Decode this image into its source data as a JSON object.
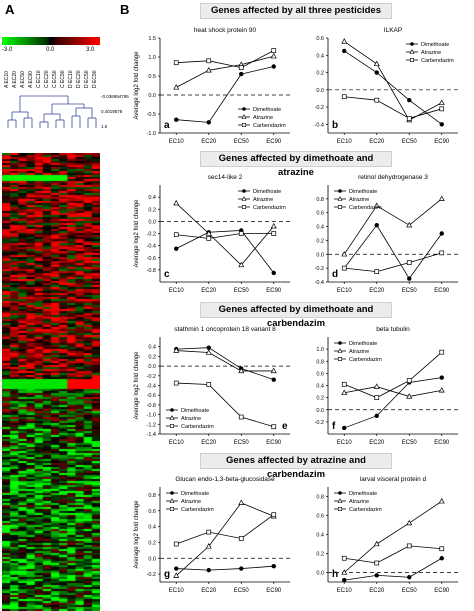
{
  "panel_a": {
    "letter": "A",
    "scale_min": "-3.0",
    "scale_mid": "0.0",
    "scale_max": "3.0",
    "samples": [
      "A EC10",
      "A EC20",
      "A EC50",
      "A EC90",
      "C EC10",
      "C EC20",
      "C EC50",
      "C EC90",
      "D EC10",
      "D EC20",
      "D EC50",
      "D EC90"
    ],
    "dendrogram_values": [
      "-0.036994785",
      "0.4019578",
      "1.0"
    ]
  },
  "panel_b": {
    "letter": "B",
    "sections": [
      "Genes affected by all three pesticides",
      "Genes affected by dimethoate and atrazine",
      "Genes affected by dimethoate and carbendazim",
      "Genes affected by atrazine and carbendazim"
    ]
  },
  "chart_data": [
    {
      "type": "line",
      "title": "heat shock protein 90",
      "panel": "a",
      "xlabel": "",
      "ylabel": "Average log2 fold change",
      "categories": [
        "EC10",
        "EC20",
        "EC50",
        "EC90"
      ],
      "ylim": [
        -1.0,
        1.5
      ],
      "yticks": [
        "-1.0",
        "-0.5",
        "0.0",
        "0.5",
        "1.0",
        "1.5"
      ],
      "legend": "bottom-right",
      "series": [
        {
          "name": "Dimethoate",
          "marker": "circle",
          "values": [
            -0.65,
            -0.72,
            0.55,
            0.75
          ]
        },
        {
          "name": "Atrazine",
          "marker": "triangle",
          "values": [
            0.2,
            0.65,
            0.8,
            1.02
          ]
        },
        {
          "name": "Carbendazim",
          "marker": "square",
          "values": [
            0.85,
            0.9,
            0.72,
            1.17
          ]
        }
      ]
    },
    {
      "type": "line",
      "title": "ILKAP",
      "panel": "b",
      "xlabel": "",
      "ylabel": "",
      "categories": [
        "EC10",
        "EC20",
        "EC50",
        "EC90"
      ],
      "ylim": [
        -0.5,
        0.6
      ],
      "yticks": [
        "-0.4",
        "-0.2",
        "0.0",
        "0.2",
        "0.4",
        "0.6"
      ],
      "legend": "top-right",
      "series": [
        {
          "name": "Dimethoate",
          "marker": "circle",
          "values": [
            0.45,
            0.2,
            -0.12,
            -0.4
          ]
        },
        {
          "name": "Atrazine",
          "marker": "triangle",
          "values": [
            0.56,
            0.3,
            -0.35,
            -0.15
          ]
        },
        {
          "name": "Carbendazim",
          "marker": "square",
          "values": [
            -0.08,
            -0.12,
            -0.33,
            -0.22
          ]
        }
      ]
    },
    {
      "type": "line",
      "title": "sec14-like 2",
      "panel": "c",
      "xlabel": "",
      "ylabel": "Average log2 fold change",
      "categories": [
        "EC10",
        "EC20",
        "EC50",
        "EC90"
      ],
      "ylim": [
        -1.0,
        0.6
      ],
      "yticks": [
        "-0.8",
        "-0.6",
        "-0.4",
        "-0.2",
        "0.0",
        "0.2",
        "0.4"
      ],
      "legend": "top-right",
      "series": [
        {
          "name": "Dimethoate",
          "marker": "circle",
          "values": [
            -0.45,
            -0.18,
            -0.15,
            -0.85
          ]
        },
        {
          "name": "Atrazine",
          "marker": "triangle",
          "values": [
            0.3,
            -0.2,
            -0.72,
            -0.08
          ]
        },
        {
          "name": "Carbendazim",
          "marker": "square",
          "values": [
            -0.22,
            -0.28,
            -0.2,
            -0.2
          ]
        }
      ]
    },
    {
      "type": "line",
      "title": "retinol dehydrogenase 3",
      "panel": "d",
      "xlabel": "",
      "ylabel": "",
      "categories": [
        "EC10",
        "EC20",
        "EC50",
        "EC90"
      ],
      "ylim": [
        -0.4,
        1.0
      ],
      "yticks": [
        "-0.4",
        "-0.2",
        "0.0",
        "0.2",
        "0.4",
        "0.6",
        "0.8"
      ],
      "legend": "top-left",
      "series": [
        {
          "name": "Dimethoate",
          "marker": "circle",
          "values": [
            -0.2,
            0.42,
            -0.35,
            0.3
          ]
        },
        {
          "name": "Atrazine",
          "marker": "triangle",
          "values": [
            0.0,
            0.7,
            0.42,
            0.8
          ]
        },
        {
          "name": "Carbendazim",
          "marker": "square",
          "values": [
            -0.2,
            -0.25,
            -0.12,
            0.02
          ]
        }
      ]
    },
    {
      "type": "line",
      "title": "stathmin 1 oncoprotein 18 variant 8",
      "panel": "e",
      "xlabel": "",
      "ylabel": "Average log2 fold change",
      "categories": [
        "EC10",
        "EC20",
        "EC50",
        "EC90"
      ],
      "ylim": [
        -1.4,
        0.6
      ],
      "yticks": [
        "-1.4",
        "-1.2",
        "-1.0",
        "-0.8",
        "-0.6",
        "-0.4",
        "-0.2",
        "0.0",
        "0.2",
        "0.4"
      ],
      "legend": "bottom-left",
      "series": [
        {
          "name": "Dimethoate",
          "marker": "circle",
          "values": [
            0.35,
            0.38,
            -0.05,
            -0.28
          ]
        },
        {
          "name": "Atrazine",
          "marker": "triangle",
          "values": [
            0.32,
            0.28,
            -0.1,
            -0.1
          ]
        },
        {
          "name": "Carbendazim",
          "marker": "square",
          "values": [
            -0.35,
            -0.38,
            -1.05,
            -1.25
          ]
        }
      ]
    },
    {
      "type": "line",
      "title": "beta tubulin",
      "panel": "f",
      "xlabel": "",
      "ylabel": "",
      "categories": [
        "EC10",
        "EC20",
        "EC50",
        "EC90"
      ],
      "ylim": [
        -0.4,
        1.2
      ],
      "yticks": [
        "-0.2",
        "0.0",
        "0.2",
        "0.4",
        "0.6",
        "0.8",
        "1.0"
      ],
      "legend": "top-left",
      "series": [
        {
          "name": "Dimethoate",
          "marker": "circle",
          "values": [
            -0.3,
            -0.1,
            0.45,
            0.53
          ]
        },
        {
          "name": "Atrazine",
          "marker": "triangle",
          "values": [
            0.28,
            0.38,
            0.22,
            0.32
          ]
        },
        {
          "name": "Carbendazim",
          "marker": "square",
          "values": [
            0.42,
            0.2,
            0.48,
            0.95
          ]
        }
      ]
    },
    {
      "type": "line",
      "title": "Glucan endo-1,3-beta-glucosidase",
      "panel": "g",
      "xlabel": "",
      "ylabel": "Average log2 fold change",
      "categories": [
        "EC10",
        "EC20",
        "EC50",
        "EC90"
      ],
      "ylim": [
        -0.3,
        0.9
      ],
      "yticks": [
        "-0.2",
        "0.0",
        "0.2",
        "0.4",
        "0.6",
        "0.8"
      ],
      "legend": "top-left",
      "series": [
        {
          "name": "Dimethoate",
          "marker": "circle",
          "values": [
            -0.13,
            -0.15,
            -0.13,
            -0.1
          ]
        },
        {
          "name": "Atrazine",
          "marker": "triangle",
          "values": [
            -0.22,
            0.15,
            0.7,
            0.53
          ]
        },
        {
          "name": "Carbendazim",
          "marker": "square",
          "values": [
            0.18,
            0.33,
            0.25,
            0.55
          ]
        }
      ]
    },
    {
      "type": "line",
      "title": "larval visceral protein d",
      "panel": "h",
      "xlabel": "",
      "ylabel": "",
      "categories": [
        "EC10",
        "EC20",
        "EC50",
        "EC90"
      ],
      "ylim": [
        -0.1,
        0.9
      ],
      "yticks": [
        "0.0",
        "0.2",
        "0.4",
        "0.6",
        "0.8"
      ],
      "legend": "top-left",
      "series": [
        {
          "name": "Dimethoate",
          "marker": "circle",
          "values": [
            -0.08,
            -0.03,
            -0.05,
            0.15
          ]
        },
        {
          "name": "Atrazine",
          "marker": "triangle",
          "values": [
            0.0,
            0.3,
            0.52,
            0.75
          ]
        },
        {
          "name": "Carbendazim",
          "marker": "square",
          "values": [
            0.15,
            0.1,
            0.28,
            0.25
          ]
        }
      ]
    }
  ]
}
